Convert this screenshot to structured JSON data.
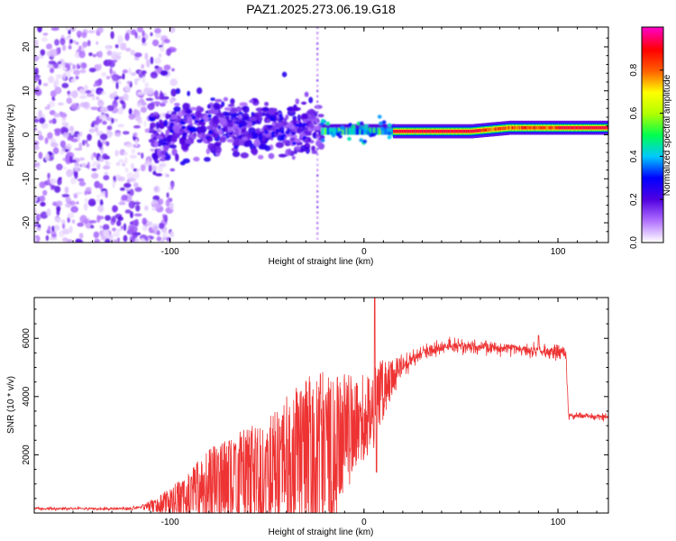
{
  "title": "PAZ1.2025.273.06.19.G18",
  "chart_data": [
    {
      "type": "heatmap",
      "title": "PAZ1.2025.273.06.19.G18",
      "xlabel": "Height of straight line (km)",
      "ylabel": "Frequency (Hz)",
      "xlim": [
        -170,
        126
      ],
      "ylim": [
        -24.5,
        24.5
      ],
      "xticks": [
        -100,
        0,
        100
      ],
      "yticks": [
        -20,
        -10,
        0,
        10,
        20
      ],
      "colorbar": {
        "label": "Normalized spectral amplitude",
        "range": [
          0.0,
          1.0
        ],
        "ticks": [
          0.0,
          0.2,
          0.4,
          0.6,
          0.8
        ],
        "tick_labels": [
          "0.0",
          "0.2",
          "0.4",
          "0.6",
          "0.8"
        ],
        "colormap": [
          "#ffffff",
          "#b070ff",
          "#5000e0",
          "#0000ff",
          "#00c8ff",
          "#00ff50",
          "#b0ff00",
          "#ffff00",
          "#ff6000",
          "#ff0000",
          "#ff00c0"
        ]
      },
      "regions": [
        {
          "x_range": [
            -170,
            -100
          ],
          "frequency_spread": [
            -24.5,
            24.5
          ],
          "amplitude": [
            0.0,
            0.15
          ],
          "description_level": "scattered low amplitude"
        },
        {
          "x_range": [
            -110,
            -22
          ],
          "frequency_spread": [
            -6,
            8
          ],
          "amplitude": [
            0.1,
            0.3
          ],
          "center_freq": 1.5
        },
        {
          "x_range": [
            -22,
            15
          ],
          "center_freq": 0.8,
          "bandwidth": 1.2,
          "amplitude": [
            0.3,
            0.9
          ]
        },
        {
          "x_range": [
            15,
            55
          ],
          "center_freq": 0.8,
          "bandwidth": 1.0,
          "amplitude": 0.95
        },
        {
          "x_range": [
            55,
            126
          ],
          "center_freq": 1.6,
          "bandwidth": 1.2,
          "amplitude": [
            0.4,
            0.95
          ]
        }
      ]
    },
    {
      "type": "line",
      "xlabel": "Height of straight line (km)",
      "ylabel": "SNR (10 * v/v)",
      "xlim": [
        -170,
        126
      ],
      "ylim": [
        0,
        7400
      ],
      "xticks": [
        -100,
        0,
        100
      ],
      "yticks": [
        2000,
        4000,
        6000
      ],
      "color": "#ee3333",
      "envelope_x": [
        -170,
        -120,
        -105,
        -95,
        -85,
        -75,
        -60,
        -45,
        -30,
        -20,
        -15,
        -10,
        -5,
        0,
        5,
        10,
        20,
        30,
        40,
        60,
        80,
        95,
        104,
        105.5,
        110,
        126
      ],
      "envelope_y": [
        150,
        150,
        300,
        500,
        900,
        1100,
        1300,
        1600,
        1900,
        2300,
        2200,
        2700,
        3000,
        3300,
        3600,
        4300,
        5000,
        5500,
        5700,
        5700,
        5650,
        5550,
        5500,
        3300,
        3350,
        3300
      ],
      "noise_amp_x": [
        -170,
        -115,
        -100,
        -80,
        -50,
        -25,
        -15,
        -5,
        5,
        15,
        25,
        40,
        104,
        105.5,
        126
      ],
      "noise_amp_y": [
        40,
        50,
        350,
        900,
        1500,
        2200,
        1900,
        1300,
        1100,
        500,
        250,
        180,
        200,
        100,
        90
      ]
    }
  ]
}
